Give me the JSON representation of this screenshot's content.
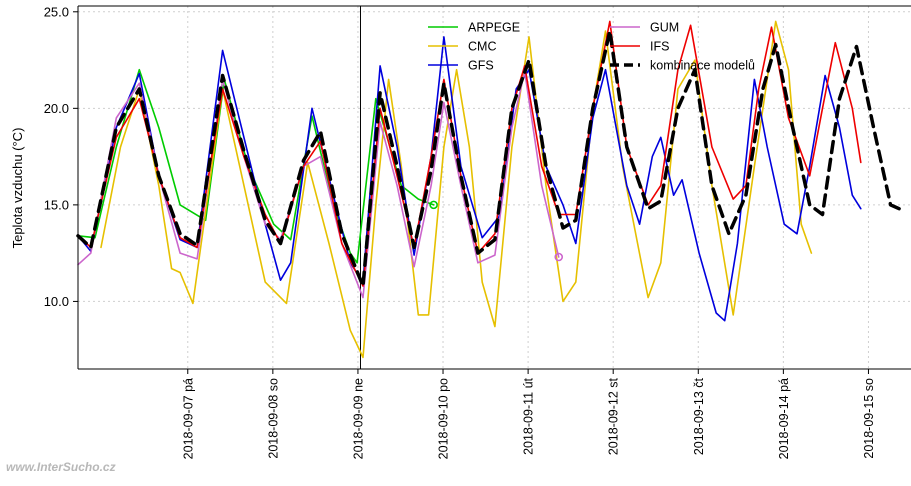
{
  "chart_data": {
    "type": "line",
    "ylabel": "Teplota vzduchu (°C)",
    "ylim": [
      6.5,
      25.3
    ],
    "xlim": [
      0,
      9.79
    ],
    "y_ticks": [
      "10.0",
      "15.0",
      "20.0",
      "25.0"
    ],
    "y_tick_values": [
      10,
      15,
      20,
      25
    ],
    "x_ticks": [
      {
        "pos": 1.29,
        "label": "2018-09-07 pá"
      },
      {
        "pos": 2.29,
        "label": "2018-09-08 so"
      },
      {
        "pos": 3.29,
        "label": "2018-09-09 ne"
      },
      {
        "pos": 4.29,
        "label": "2018-09-10 po"
      },
      {
        "pos": 5.29,
        "label": "2018-09-11 út"
      },
      {
        "pos": 6.29,
        "label": "2018-09-12 st"
      },
      {
        "pos": 7.29,
        "label": "2018-09-13 čt"
      },
      {
        "pos": 8.29,
        "label": "2018-09-14 pá"
      },
      {
        "pos": 9.29,
        "label": "2018-09-15 so"
      }
    ],
    "now_line_x": 3.32,
    "grid": true,
    "legend_position": "top-right",
    "series": [
      {
        "name": "ARPEGE",
        "color": "#00cc00",
        "dashed": false,
        "points": [
          [
            0,
            13.4
          ],
          [
            0.2,
            13.3
          ],
          [
            0.45,
            18
          ],
          [
            0.72,
            22
          ],
          [
            0.95,
            19
          ],
          [
            1.2,
            15
          ],
          [
            1.5,
            14.2
          ],
          [
            1.72,
            21.5
          ],
          [
            2.0,
            17
          ],
          [
            2.3,
            14
          ],
          [
            2.5,
            13.2
          ],
          [
            2.75,
            19.6
          ],
          [
            3.0,
            15
          ],
          [
            3.2,
            12.5
          ],
          [
            3.28,
            12
          ],
          [
            3.5,
            20.5
          ],
          [
            3.8,
            16
          ],
          [
            4.0,
            15.3
          ],
          [
            4.18,
            15
          ]
        ],
        "end_marker": [
          4.18,
          15.0
        ]
      },
      {
        "name": "CMC",
        "color": "#e6c000",
        "dashed": false,
        "points": [
          [
            0.27,
            12.8
          ],
          [
            0.5,
            18
          ],
          [
            0.72,
            21
          ],
          [
            0.95,
            16
          ],
          [
            1.1,
            11.7
          ],
          [
            1.2,
            11.5
          ],
          [
            1.35,
            9.9
          ],
          [
            1.7,
            21
          ],
          [
            1.9,
            17
          ],
          [
            2.2,
            11
          ],
          [
            2.45,
            9.9
          ],
          [
            2.7,
            17.2
          ],
          [
            2.95,
            13
          ],
          [
            3.2,
            8.5
          ],
          [
            3.35,
            7.1
          ],
          [
            3.5,
            15
          ],
          [
            3.65,
            21.5
          ],
          [
            3.8,
            17
          ],
          [
            4.0,
            9.3
          ],
          [
            4.12,
            9.3
          ],
          [
            4.3,
            18
          ],
          [
            4.45,
            22
          ],
          [
            4.6,
            18
          ],
          [
            4.75,
            11
          ],
          [
            4.9,
            8.7
          ],
          [
            5.1,
            18
          ],
          [
            5.3,
            23.7
          ],
          [
            5.5,
            16
          ],
          [
            5.7,
            10
          ],
          [
            5.85,
            11
          ],
          [
            6.05,
            20
          ],
          [
            6.2,
            24
          ],
          [
            6.4,
            17
          ],
          [
            6.7,
            10.2
          ],
          [
            6.85,
            12
          ],
          [
            7.05,
            21
          ],
          [
            7.25,
            22.5
          ],
          [
            7.45,
            16
          ],
          [
            7.7,
            9.3
          ],
          [
            7.95,
            17
          ],
          [
            8.2,
            24.5
          ],
          [
            8.35,
            22
          ],
          [
            8.5,
            14
          ],
          [
            8.62,
            12.5
          ]
        ]
      },
      {
        "name": "GFS",
        "color": "#0000dd",
        "dashed": false,
        "points": [
          [
            0,
            13.4
          ],
          [
            0.15,
            12.6
          ],
          [
            0.45,
            19
          ],
          [
            0.72,
            21.8
          ],
          [
            0.95,
            16.5
          ],
          [
            1.2,
            13.2
          ],
          [
            1.4,
            12.8
          ],
          [
            1.7,
            23
          ],
          [
            1.95,
            18.5
          ],
          [
            2.2,
            14
          ],
          [
            2.38,
            11.1
          ],
          [
            2.5,
            12
          ],
          [
            2.75,
            20
          ],
          [
            3.0,
            15.5
          ],
          [
            3.2,
            12
          ],
          [
            3.35,
            11
          ],
          [
            3.55,
            22.2
          ],
          [
            3.75,
            18
          ],
          [
            3.95,
            12.4
          ],
          [
            4.15,
            17.5
          ],
          [
            4.3,
            23.7
          ],
          [
            4.5,
            17
          ],
          [
            4.75,
            13.3
          ],
          [
            4.95,
            14.4
          ],
          [
            5.15,
            21
          ],
          [
            5.3,
            22
          ],
          [
            5.5,
            17
          ],
          [
            5.7,
            15
          ],
          [
            5.85,
            13
          ],
          [
            6.05,
            19.5
          ],
          [
            6.2,
            22
          ],
          [
            6.45,
            16
          ],
          [
            6.6,
            14
          ],
          [
            6.75,
            17.5
          ],
          [
            6.85,
            18.5
          ],
          [
            7.0,
            15.5
          ],
          [
            7.1,
            16.3
          ],
          [
            7.3,
            12.5
          ],
          [
            7.5,
            9.4
          ],
          [
            7.6,
            9.0
          ],
          [
            7.75,
            13
          ],
          [
            7.95,
            21.5
          ],
          [
            8.1,
            18
          ],
          [
            8.3,
            14
          ],
          [
            8.45,
            13.5
          ],
          [
            8.6,
            17
          ],
          [
            8.78,
            21.7
          ],
          [
            8.95,
            19
          ],
          [
            9.1,
            15.5
          ],
          [
            9.2,
            14.8
          ]
        ]
      },
      {
        "name": "GUM",
        "color": "#cc66cc",
        "dashed": false,
        "points": [
          [
            0,
            11.9
          ],
          [
            0.15,
            12.5
          ],
          [
            0.45,
            19.5
          ],
          [
            0.72,
            21.3
          ],
          [
            0.95,
            16.5
          ],
          [
            1.2,
            12.5
          ],
          [
            1.4,
            12.2
          ],
          [
            1.7,
            21.5
          ],
          [
            1.95,
            17.5
          ],
          [
            2.2,
            14
          ],
          [
            2.38,
            13.2
          ],
          [
            2.65,
            17
          ],
          [
            2.85,
            17.5
          ],
          [
            3.1,
            13
          ],
          [
            3.35,
            10.2
          ],
          [
            3.55,
            19.3
          ],
          [
            3.75,
            16
          ],
          [
            3.95,
            11.8
          ],
          [
            4.15,
            16
          ],
          [
            4.3,
            20.3
          ],
          [
            4.5,
            16
          ],
          [
            4.7,
            12
          ],
          [
            4.9,
            12.4
          ],
          [
            5.1,
            19
          ],
          [
            5.25,
            21.9
          ],
          [
            5.45,
            16
          ],
          [
            5.65,
            12.3
          ]
        ],
        "end_marker": [
          5.65,
          12.3
        ]
      },
      {
        "name": "IFS",
        "color": "#ee0000",
        "dashed": false,
        "points": [
          [
            0,
            13.4
          ],
          [
            0.15,
            12.8
          ],
          [
            0.45,
            18.5
          ],
          [
            0.72,
            20.5
          ],
          [
            0.95,
            16.5
          ],
          [
            1.2,
            13.3
          ],
          [
            1.4,
            12.8
          ],
          [
            1.7,
            21
          ],
          [
            1.95,
            17.5
          ],
          [
            2.2,
            14.5
          ],
          [
            2.38,
            13
          ],
          [
            2.65,
            17
          ],
          [
            2.85,
            18.3
          ],
          [
            3.1,
            13
          ],
          [
            3.35,
            10.8
          ],
          [
            3.55,
            20
          ],
          [
            3.75,
            16.5
          ],
          [
            3.95,
            12.8
          ],
          [
            4.15,
            17.5
          ],
          [
            4.3,
            21.5
          ],
          [
            4.5,
            16.5
          ],
          [
            4.7,
            12.5
          ],
          [
            4.9,
            13.5
          ],
          [
            5.1,
            20
          ],
          [
            5.25,
            22.2
          ],
          [
            5.45,
            17
          ],
          [
            5.65,
            14.5
          ],
          [
            5.85,
            14.5
          ],
          [
            6.05,
            20
          ],
          [
            6.25,
            24.5
          ],
          [
            6.45,
            18
          ],
          [
            6.7,
            15
          ],
          [
            6.85,
            16
          ],
          [
            7.05,
            22
          ],
          [
            7.2,
            24.3
          ],
          [
            7.45,
            18
          ],
          [
            7.7,
            15.3
          ],
          [
            7.85,
            16
          ],
          [
            8.0,
            21
          ],
          [
            8.15,
            24.2
          ],
          [
            8.35,
            19.5
          ],
          [
            8.6,
            16.5
          ],
          [
            8.75,
            20
          ],
          [
            8.9,
            23.4
          ],
          [
            9.1,
            20
          ],
          [
            9.2,
            17.2
          ]
        ]
      },
      {
        "name": "kombinace modelů",
        "color": "#000000",
        "dashed": true,
        "points": [
          [
            0,
            13.4
          ],
          [
            0.15,
            12.8
          ],
          [
            0.45,
            19
          ],
          [
            0.72,
            21
          ],
          [
            0.95,
            16.5
          ],
          [
            1.2,
            13.5
          ],
          [
            1.4,
            12.9
          ],
          [
            1.7,
            21.7
          ],
          [
            1.95,
            17.8
          ],
          [
            2.2,
            14.2
          ],
          [
            2.38,
            13
          ],
          [
            2.65,
            17.3
          ],
          [
            2.85,
            18.8
          ],
          [
            3.1,
            13.5
          ],
          [
            3.35,
            10.8
          ],
          [
            3.55,
            20.8
          ],
          [
            3.75,
            17
          ],
          [
            3.95,
            12.8
          ],
          [
            4.15,
            16.8
          ],
          [
            4.3,
            21.3
          ],
          [
            4.5,
            16.5
          ],
          [
            4.7,
            12.5
          ],
          [
            4.9,
            13.2
          ],
          [
            5.1,
            20
          ],
          [
            5.3,
            22.5
          ],
          [
            5.5,
            17
          ],
          [
            5.7,
            13.8
          ],
          [
            5.85,
            14.2
          ],
          [
            6.05,
            20
          ],
          [
            6.25,
            24
          ],
          [
            6.45,
            18
          ],
          [
            6.7,
            14.8
          ],
          [
            6.85,
            15.2
          ],
          [
            7.05,
            20
          ],
          [
            7.25,
            22
          ],
          [
            7.45,
            16
          ],
          [
            7.65,
            13.5
          ],
          [
            7.85,
            15.5
          ],
          [
            8.05,
            21
          ],
          [
            8.2,
            23.3
          ],
          [
            8.4,
            19
          ],
          [
            8.6,
            15
          ],
          [
            8.75,
            14.5
          ],
          [
            8.95,
            20.5
          ],
          [
            9.15,
            23.2
          ],
          [
            9.35,
            19
          ],
          [
            9.55,
            15
          ],
          [
            9.65,
            14.8
          ]
        ]
      }
    ]
  },
  "watermark": "www.InterSucho.cz"
}
